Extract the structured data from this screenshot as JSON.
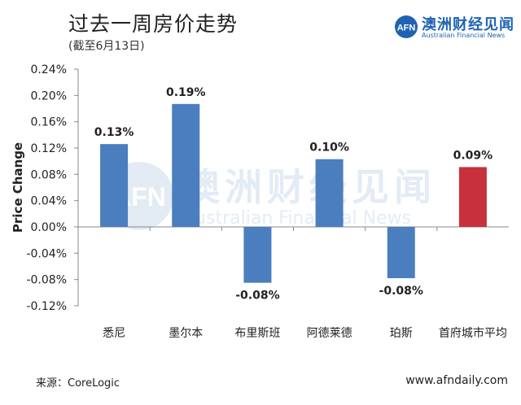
{
  "header": {
    "title": "过去一周房价走势",
    "subtitle": "(截至6月13日)"
  },
  "logo": {
    "mark_text": "AFN",
    "name_cn": "澳洲财经见闻",
    "name_en": "Australian Financial News"
  },
  "watermark": {
    "mark_text": "AFN",
    "name_cn": "澳洲财经见闻",
    "name_en": "Australian Financial News"
  },
  "footer": {
    "source": "来源：CoreLogic",
    "website": "www.afndaily.com"
  },
  "colors": {
    "bar_default": "#4a7ebf",
    "bar_highlight": "#c8303d",
    "brand": "#1f63b3",
    "axis": "#888888"
  },
  "chart_data": {
    "type": "bar",
    "title": "过去一周房价走势",
    "xlabel": "",
    "ylabel": "Price Change",
    "ylim": [
      -0.12,
      0.24
    ],
    "yticks": [
      0.24,
      0.2,
      0.16,
      0.12,
      0.08,
      0.04,
      0.0,
      -0.04,
      -0.08,
      -0.12
    ],
    "ytick_labels": [
      "0.24%",
      "0.20%",
      "0.16%",
      "0.12%",
      "0.08%",
      "0.04%",
      "0.00%",
      "-0.04%",
      "-0.08%",
      "-0.12%"
    ],
    "categories": [
      "悉尼",
      "墨尔本",
      "布里斯班",
      "阿德莱德",
      "珀斯",
      "首府城市平均"
    ],
    "values": [
      0.126,
      0.187,
      -0.085,
      0.103,
      -0.078,
      0.091
    ],
    "data_labels": [
      "0.13%",
      "0.19%",
      "-0.08%",
      "0.10%",
      "-0.08%",
      "0.09%"
    ],
    "highlight": [
      false,
      false,
      false,
      false,
      false,
      true
    ],
    "grid": false,
    "legend": "none"
  }
}
